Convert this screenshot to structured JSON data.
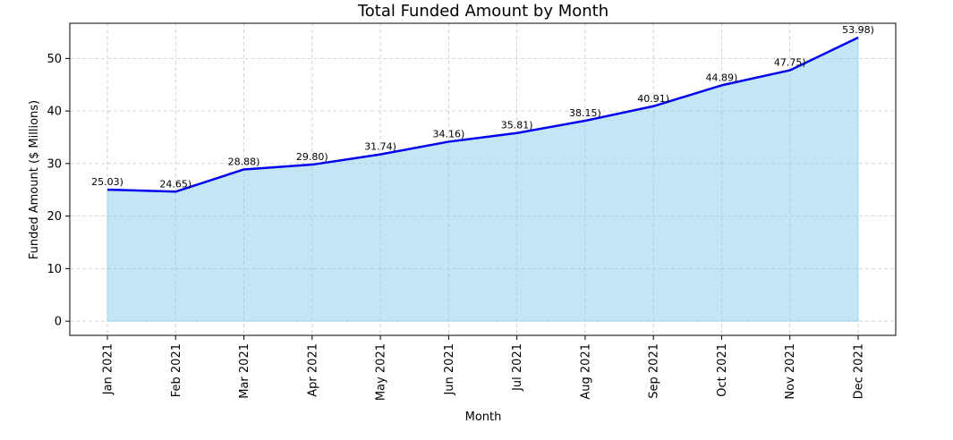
{
  "chart_data": {
    "type": "area",
    "title": "Total Funded Amount by Month",
    "xlabel": "Month",
    "ylabel": "Funded Amount ($ Millions)",
    "categories": [
      "Jan 2021",
      "Feb 2021",
      "Mar 2021",
      "Apr 2021",
      "May 2021",
      "Jun 2021",
      "Jul 2021",
      "Aug 2021",
      "Sep 2021",
      "Oct 2021",
      "Nov 2021",
      "Dec 2021"
    ],
    "series": [
      {
        "values": [
          25.03,
          24.65,
          28.88,
          29.8,
          31.74,
          34.16,
          35.81,
          38.15,
          40.91,
          44.89,
          47.75,
          53.98
        ]
      }
    ],
    "data_labels": [
      "25.03)",
      "24.65)",
      "28.88)",
      "29.80)",
      "31.74)",
      "34.16)",
      "35.81)",
      "38.15)",
      "40.91)",
      "44.89)",
      "47.75)",
      "53.98)"
    ],
    "yticks": [
      0,
      10,
      20,
      30,
      40,
      50
    ],
    "ylim": [
      -2.7,
      56.7
    ],
    "grid": true,
    "colors": {
      "line": "#0000ee",
      "fill": "#87ceeb",
      "fill_opacity": 0.5
    }
  }
}
